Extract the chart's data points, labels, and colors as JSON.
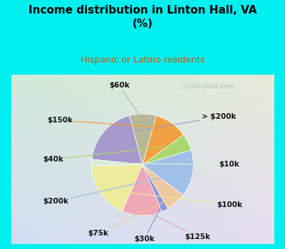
{
  "title": "Income distribution in Linton Hall, VA\n(%)",
  "subtitle": "Hispanic or Latino residents",
  "labels": [
    "> $200k",
    "$10k",
    "$100k",
    "$125k",
    "$30k",
    "$75k",
    "$200k",
    "$40k",
    "$150k",
    "$60k"
  ],
  "sizes": [
    18,
    2,
    17,
    12,
    2,
    6,
    14,
    5,
    10,
    8
  ],
  "colors": [
    "#a899cc",
    "#d8ecd8",
    "#ecec9a",
    "#f0a8b8",
    "#8898d8",
    "#f0c8a0",
    "#a0c0e8",
    "#aad870",
    "#f0a040",
    "#b8b898"
  ],
  "bg_color": "#00efef",
  "chart_bg": "#d8eed8",
  "title_color": "#000000",
  "subtitle_color": "#c05820",
  "watermark": "City-Data.com",
  "label_fontsize": 7.5,
  "startangle": 105
}
